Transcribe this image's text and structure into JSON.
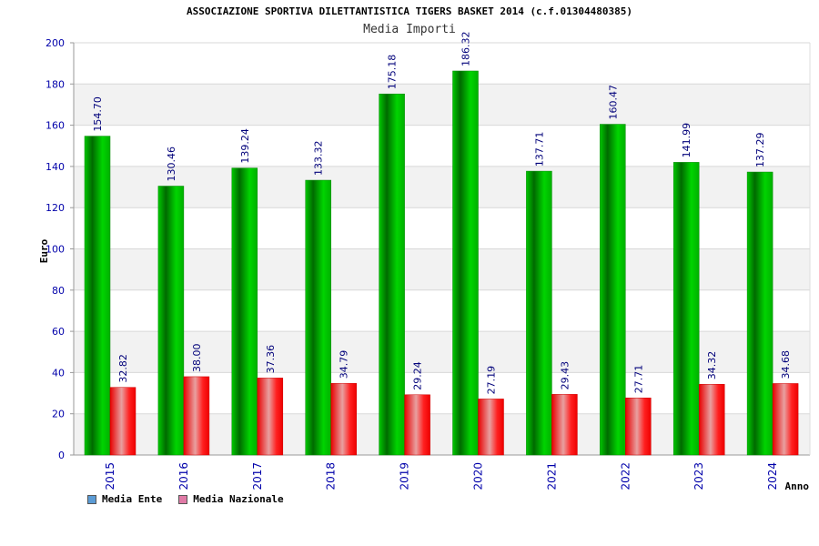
{
  "chart_data": {
    "type": "bar",
    "title": "ASSOCIAZIONE SPORTIVA DILETTANTISTICA TIGERS BASKET 2014 (c.f.01304480385)",
    "subtitle": "Media Importi",
    "xlabel": "Anno",
    "ylabel": "Euro",
    "ylim": [
      0,
      200
    ],
    "yticks": [
      0,
      20,
      40,
      60,
      80,
      100,
      120,
      140,
      160,
      180,
      200
    ],
    "grid": true,
    "legend_position": "bottom-left",
    "categories": [
      "2015",
      "2016",
      "2017",
      "2018",
      "2019",
      "2020",
      "2021",
      "2022",
      "2023",
      "2024"
    ],
    "series": [
      {
        "name": "Media Ente",
        "color": "#00b000",
        "legend_color": "#5b9bd5",
        "values": [
          154.7,
          130.46,
          139.24,
          133.32,
          175.18,
          186.32,
          137.71,
          160.47,
          141.99,
          137.29
        ],
        "labels": [
          "154.70",
          "130.46",
          "139.24",
          "133.32",
          "175.18",
          "186.32",
          "137.71",
          "160.47",
          "141.99",
          "137.29"
        ]
      },
      {
        "name": "Media Nazionale",
        "color": "#ee0000",
        "legend_color": "#e07aa6",
        "values": [
          32.82,
          38.0,
          37.36,
          34.79,
          29.24,
          27.19,
          29.43,
          27.71,
          34.32,
          34.68
        ],
        "labels": [
          "32.82",
          "38.00",
          "37.36",
          "34.79",
          "29.24",
          "27.19",
          "29.43",
          "27.71",
          "34.32",
          "34.68"
        ]
      }
    ]
  }
}
